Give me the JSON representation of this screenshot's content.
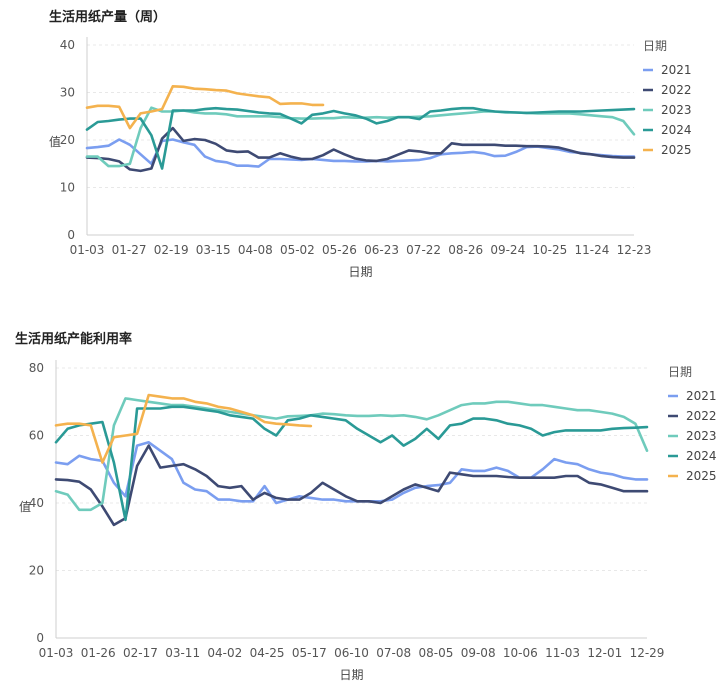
{
  "colors": {
    "2021": "#7b9ef0",
    "2022": "#3e4a73",
    "2023": "#6fcbbc",
    "2024": "#2a9a96",
    "2025": "#f4b24e"
  },
  "chart_data": [
    {
      "type": "line",
      "title": "生活用纸产量（周）",
      "xlabel": "日期",
      "ylabel": "值",
      "ylim": [
        0,
        40
      ],
      "yticks": [
        "0",
        "10",
        "20",
        "30",
        "40"
      ],
      "xticks": [
        "01-03",
        "01-27",
        "02-19",
        "03-15",
        "04-08",
        "05-02",
        "05-26",
        "06-23",
        "07-22",
        "08-26",
        "09-24",
        "10-25",
        "11-24",
        "12-23"
      ],
      "legend_title": "日期",
      "n_points": 52,
      "series": [
        {
          "name": "2021",
          "values": [
            18.3,
            18.5,
            18.8,
            20.1,
            19.0,
            17.0,
            15.0,
            19.8,
            20.1,
            19.5,
            19.0,
            16.5,
            15.6,
            15.3,
            14.6,
            14.6,
            14.4,
            16.0,
            16.0,
            15.9,
            15.8,
            16.0,
            15.8,
            15.6,
            15.6,
            15.5,
            15.5,
            15.6,
            15.5,
            15.6,
            15.7,
            15.8,
            16.2,
            17.0,
            17.2,
            17.3,
            17.5,
            17.2,
            16.6,
            16.7,
            17.5,
            18.5,
            18.6,
            18.3,
            18.0,
            17.5,
            17.3,
            17.0,
            16.8,
            16.6,
            16.5,
            16.5
          ]
        },
        {
          "name": "2022",
          "values": [
            16.3,
            16.2,
            16.0,
            15.5,
            13.8,
            13.5,
            14.0,
            20.3,
            22.5,
            19.8,
            20.2,
            20.0,
            19.2,
            17.8,
            17.5,
            17.6,
            16.3,
            16.3,
            17.2,
            16.5,
            16.0,
            16.0,
            16.8,
            18.0,
            17.0,
            16.1,
            15.7,
            15.6,
            16.0,
            16.9,
            17.8,
            17.6,
            17.2,
            17.2,
            19.3,
            19.0,
            19.0,
            19.0,
            19.0,
            18.8,
            18.8,
            18.7,
            18.7,
            18.6,
            18.4,
            17.8,
            17.2,
            17.0,
            16.6,
            16.4,
            16.3,
            16.3
          ]
        },
        {
          "name": "2023",
          "values": [
            16.5,
            16.5,
            14.5,
            14.5,
            15.0,
            22.5,
            26.8,
            26.0,
            26.0,
            26.2,
            25.8,
            25.6,
            25.6,
            25.4,
            25.0,
            25.0,
            25.0,
            25.0,
            24.8,
            24.6,
            24.5,
            24.5,
            24.6,
            24.6,
            24.8,
            24.7,
            24.7,
            24.8,
            24.7,
            24.8,
            24.8,
            24.9,
            25.0,
            25.2,
            25.4,
            25.6,
            25.8,
            26.0,
            26.0,
            25.8,
            25.8,
            25.7,
            25.6,
            25.6,
            25.6,
            25.6,
            25.4,
            25.2,
            25.0,
            24.8,
            24.0,
            21.2
          ]
        },
        {
          "name": "2024",
          "values": [
            22.2,
            23.8,
            24.0,
            24.3,
            24.5,
            24.5,
            21.0,
            14.0,
            26.2,
            26.2,
            26.2,
            26.5,
            26.7,
            26.5,
            26.4,
            26.1,
            25.8,
            25.6,
            25.5,
            24.5,
            23.5,
            25.3,
            25.6,
            26.1,
            25.6,
            25.2,
            24.5,
            23.5,
            24.0,
            24.8,
            24.8,
            24.4,
            26.0,
            26.2,
            26.5,
            26.7,
            26.7,
            26.3,
            26.0,
            25.9,
            25.8,
            25.7,
            25.8,
            25.9,
            26.0,
            26.0,
            26.0,
            26.1,
            26.2,
            26.3,
            26.4,
            26.5
          ]
        },
        {
          "name": "2025",
          "values": [
            26.8,
            27.2,
            27.2,
            27.0,
            22.5,
            25.6,
            26.0,
            26.5,
            31.3,
            31.2,
            30.8,
            30.7,
            30.5,
            30.4,
            29.8,
            29.5,
            29.2,
            29.0,
            27.6,
            27.7,
            27.7,
            27.4,
            27.4
          ]
        }
      ]
    },
    {
      "type": "line",
      "title": "生活用纸产能利用率",
      "xlabel": "日期",
      "ylabel": "值",
      "ylim": [
        0,
        80
      ],
      "yticks": [
        "0",
        "20",
        "40",
        "60",
        "80"
      ],
      "xticks": [
        "01-03",
        "01-26",
        "02-17",
        "03-11",
        "04-02",
        "04-25",
        "05-17",
        "06-10",
        "07-08",
        "08-05",
        "09-08",
        "10-06",
        "11-03",
        "12-01",
        "12-29"
      ],
      "legend_title": "日期",
      "n_points": 52,
      "series": [
        {
          "name": "2021",
          "values": [
            52,
            51.5,
            54,
            53,
            52.5,
            46,
            42,
            57,
            58,
            55.5,
            53,
            46,
            44,
            43.5,
            41,
            41,
            40.5,
            40.5,
            45,
            40,
            41,
            42,
            41.5,
            41,
            41,
            40.5,
            40.5,
            40.5,
            40.5,
            41,
            43,
            44.5,
            45,
            45.3,
            46,
            50,
            49.5,
            49.5,
            50.5,
            49.5,
            47.5,
            47.5,
            50,
            53,
            52,
            51.5,
            50,
            49,
            48.5,
            47.5,
            47,
            47
          ]
        },
        {
          "name": "2022",
          "values": [
            47,
            46.8,
            46.3,
            44,
            39,
            33.5,
            35.5,
            51,
            57,
            50.5,
            51,
            51.5,
            50,
            48,
            45,
            44.5,
            45,
            41,
            43,
            41.5,
            41,
            41,
            43,
            46,
            44,
            42,
            40.5,
            40.5,
            40,
            42,
            44,
            45.5,
            44.5,
            43.5,
            49,
            48.5,
            48,
            48,
            48,
            47.7,
            47.5,
            47.5,
            47.5,
            47.5,
            48,
            48,
            46,
            45.5,
            44.5,
            43.5,
            43.5,
            43.5
          ]
        },
        {
          "name": "2023",
          "values": [
            43.5,
            42.5,
            38,
            38,
            40,
            63,
            71,
            70.5,
            70,
            69.5,
            69,
            69,
            68.5,
            68,
            67.5,
            67,
            66.5,
            66,
            65.5,
            65,
            65.7,
            65.8,
            66,
            66.5,
            66.3,
            66,
            65.8,
            65.8,
            66,
            65.8,
            66,
            65.5,
            64.8,
            66,
            67.5,
            69,
            69.5,
            69.5,
            70,
            70,
            69.5,
            69,
            69,
            68.5,
            68,
            67.5,
            67.5,
            67,
            66.5,
            65.5,
            63.5,
            55.5
          ]
        },
        {
          "name": "2024",
          "values": [
            58,
            62,
            63,
            63.5,
            64,
            52,
            35,
            68,
            68,
            68,
            68.5,
            68.5,
            68,
            67.5,
            67,
            66,
            65.5,
            65,
            62,
            60,
            64.5,
            65,
            66,
            65.5,
            65,
            64.5,
            62,
            60,
            58,
            60,
            57,
            59,
            62,
            59,
            63,
            63.5,
            65,
            65,
            64.5,
            63.5,
            63,
            62,
            60,
            61,
            61.5,
            61.5,
            61.5,
            61.5,
            62,
            62.2,
            62.3,
            62.5
          ]
        },
        {
          "name": "2025",
          "values": [
            63,
            63.5,
            63.5,
            63,
            52,
            59.5,
            60,
            60.5,
            72,
            71.5,
            71,
            71,
            70,
            69.5,
            68.5,
            68,
            67,
            66,
            64,
            63.5,
            63.3,
            63,
            62.8
          ]
        }
      ]
    }
  ]
}
